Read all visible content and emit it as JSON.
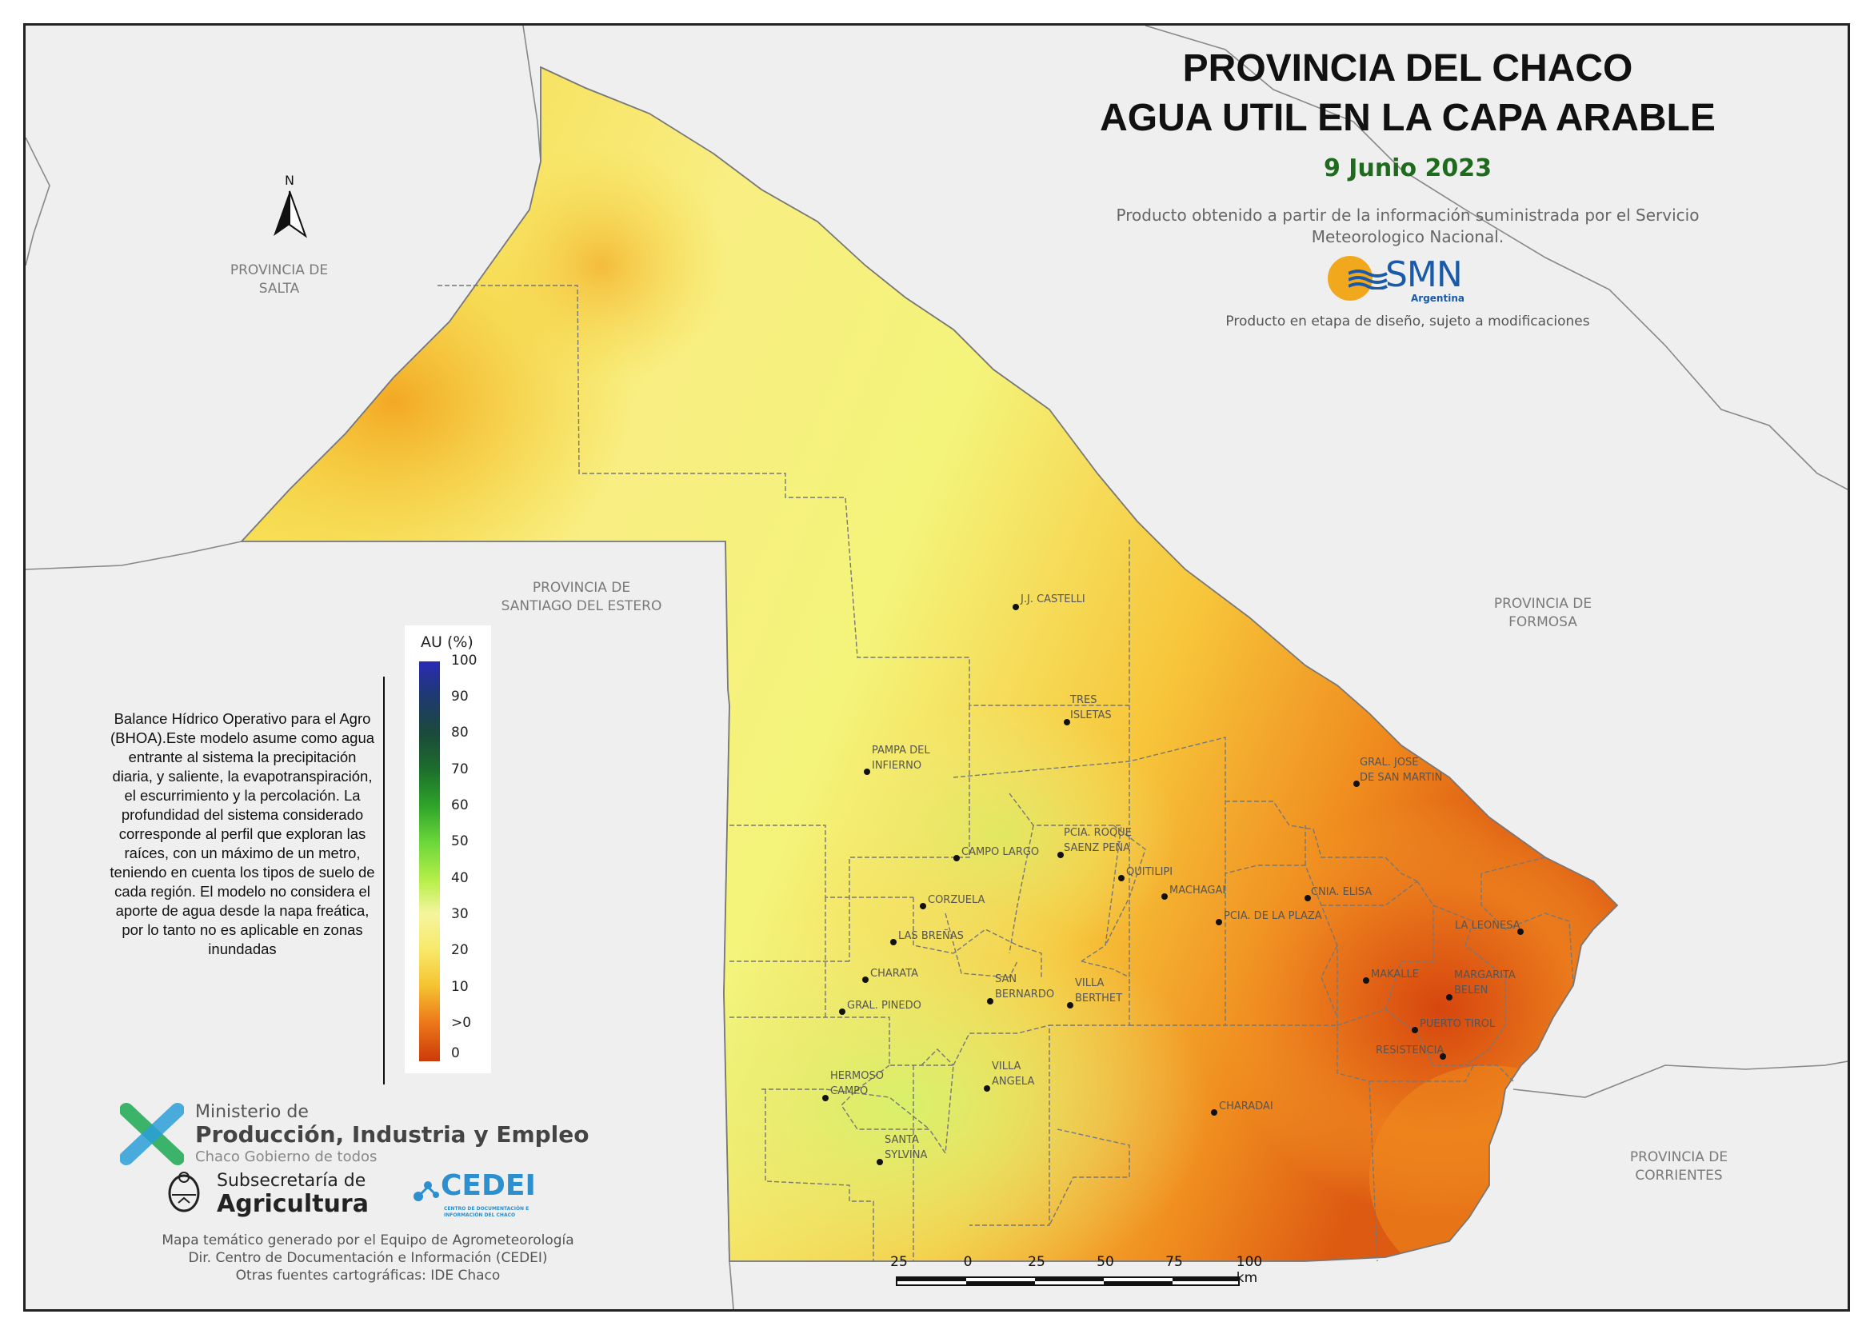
{
  "title": {
    "line1": "PROVINCIA DEL CHACO",
    "line2": "AGUA UTIL EN LA CAPA ARABLE",
    "date": "9 Junio 2023"
  },
  "source_note": "Producto obtenido a partir de la información suministrada por el Servicio Meteorologico Nacional.",
  "smn_logo": {
    "text": "SMN",
    "sub": "Argentina"
  },
  "design_note": "Producto en etapa de diseño, sujeto a modificaciones",
  "north_arrow": {
    "label": "N"
  },
  "regions": {
    "salta": {
      "line1": "PROVINCIA DE",
      "line2": "SALTA"
    },
    "santiago": {
      "line1": "PROVINCIA DE",
      "line2": "SANTIAGO DEL ESTERO"
    },
    "formosa": {
      "line1": "PROVINCIA DE",
      "line2": "FORMOSA"
    },
    "corrientes": {
      "line1": "PROVINCIA DE",
      "line2": "CORRIENTES"
    }
  },
  "towns": [
    {
      "id": "castelli",
      "line1": "J.J. CASTELLI",
      "line2": ""
    },
    {
      "id": "tres-isletas",
      "line1": "TRES",
      "line2": "ISLETAS"
    },
    {
      "id": "pampa",
      "line1": "PAMPA DEL",
      "line2": "INFIERNO"
    },
    {
      "id": "san-martin",
      "line1": "GRAL. JOSE",
      "line2": "DE SAN MARTIN"
    },
    {
      "id": "campo-largo",
      "line1": "CAMPO LARGO",
      "line2": ""
    },
    {
      "id": "saenz-pena",
      "line1": "PCIA. ROQUE",
      "line2": "SAENZ PEÑA"
    },
    {
      "id": "quitilipi",
      "line1": "QUITILIPI",
      "line2": ""
    },
    {
      "id": "machagai",
      "line1": "MACHAGAI",
      "line2": ""
    },
    {
      "id": "cnia-elisa",
      "line1": "CNIA. ELISA",
      "line2": ""
    },
    {
      "id": "corzuela",
      "line1": "CORZUELA",
      "line2": ""
    },
    {
      "id": "de-la-plaza",
      "line1": "PCIA. DE LA PLAZA",
      "line2": ""
    },
    {
      "id": "la-leonesa",
      "line1": "LA LEONESA",
      "line2": ""
    },
    {
      "id": "las-brenas",
      "line1": "LAS BREÑAS",
      "line2": ""
    },
    {
      "id": "charata",
      "line1": "CHARATA",
      "line2": ""
    },
    {
      "id": "san-bernardo",
      "line1": "SAN",
      "line2": "BERNARDO"
    },
    {
      "id": "villa-berthet",
      "line1": "VILLA",
      "line2": "BERTHET"
    },
    {
      "id": "makalle",
      "line1": "MAKALLE",
      "line2": ""
    },
    {
      "id": "margarita-belen",
      "line1": "MARGARITA",
      "line2": "BELEN"
    },
    {
      "id": "gral-pinedo",
      "line1": "GRAL. PINEDO",
      "line2": ""
    },
    {
      "id": "puerto-tirol",
      "line1": "PUERTO TIROL",
      "line2": ""
    },
    {
      "id": "resistencia",
      "line1": "RESISTENCIA",
      "line2": ""
    },
    {
      "id": "hermoso-campo",
      "line1": "HERMOSO",
      "line2": "CAMPO"
    },
    {
      "id": "villa-angela",
      "line1": "VILLA",
      "line2": "ANGELA"
    },
    {
      "id": "charadai",
      "line1": "CHARADAI",
      "line2": ""
    },
    {
      "id": "santa-sylvina",
      "line1": "SANTA",
      "line2": "SYLVINA"
    }
  ],
  "legend": {
    "title": "AU (%)",
    "ticks": [
      "100",
      "90",
      "80",
      "70",
      "60",
      "50",
      "40",
      "30",
      "20",
      "10",
      ">0",
      "0"
    ],
    "colors": {
      "wet": "#2a2ab5",
      "mid": "#6ad63a",
      "dry": "#f5c432",
      "very_dry": "#cc3a0a"
    }
  },
  "description": "Balance Hídrico Operativo para el Agro (BHOA).Este modelo asume como agua entrante al sistema la precipitación diaria, y saliente, la evapotranspiración, el escurrimiento y la percolación. La profundidad del sistema considerado corresponde al perfil que exploran las raíces, con un máximo de un metro, teniendo en cuenta los tipos de suelo de cada región. El modelo no considera el aporte de agua desde la napa freática, por lo tanto no es aplicable en zonas inundadas",
  "ministry": {
    "line1": "Ministerio de",
    "line2": "Producción, Industria y Empleo",
    "line3": "Chaco Gobierno de todos"
  },
  "subsecretaria": {
    "line1": "Subsecretaría de",
    "line2": "Agricultura"
  },
  "cedei": {
    "name": "CEDEI",
    "sub": "CENTRO DE DOCUMENTACIÓN E INFORMACIÓN DEL CHACO"
  },
  "credits": {
    "line1": "Mapa temático generado por el Equipo de Agrometeorología",
    "line2": "Dir. Centro de Documentación e Información (CEDEI)",
    "line3": "Otras fuentes cartográficas: IDE Chaco"
  },
  "scale_bar": {
    "labels": [
      "25",
      "0",
      "25",
      "50",
      "75",
      "100 km"
    ]
  }
}
